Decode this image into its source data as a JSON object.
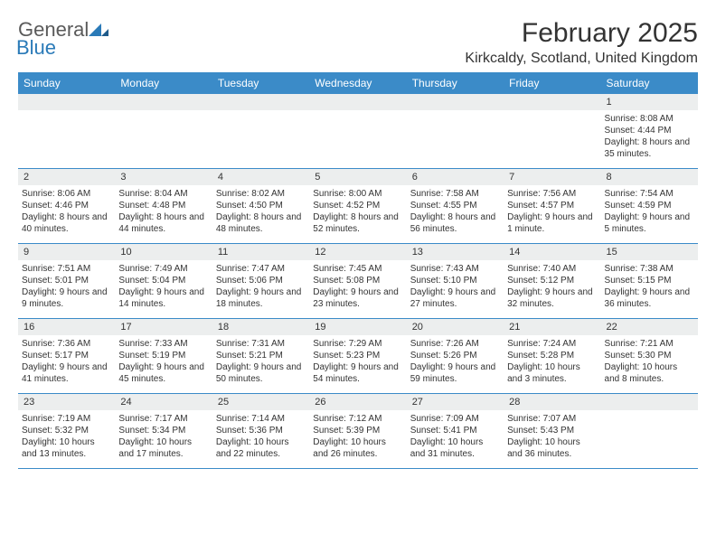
{
  "logo": {
    "text1": "General",
    "text2": "Blue"
  },
  "title": "February 2025",
  "location": "Kirkcaldy, Scotland, United Kingdom",
  "colors": {
    "header_bg": "#3b8bc8",
    "header_text": "#ffffff",
    "daynum_bg": "#eceeee",
    "border": "#3b8bc8",
    "logo_gray": "#5a5a5a",
    "logo_blue": "#2a7ab8"
  },
  "weekdays": [
    "Sunday",
    "Monday",
    "Tuesday",
    "Wednesday",
    "Thursday",
    "Friday",
    "Saturday"
  ],
  "weeks": [
    [
      {
        "day": "",
        "sunrise": "",
        "sunset": "",
        "daylight": ""
      },
      {
        "day": "",
        "sunrise": "",
        "sunset": "",
        "daylight": ""
      },
      {
        "day": "",
        "sunrise": "",
        "sunset": "",
        "daylight": ""
      },
      {
        "day": "",
        "sunrise": "",
        "sunset": "",
        "daylight": ""
      },
      {
        "day": "",
        "sunrise": "",
        "sunset": "",
        "daylight": ""
      },
      {
        "day": "",
        "sunrise": "",
        "sunset": "",
        "daylight": ""
      },
      {
        "day": "1",
        "sunrise": "Sunrise: 8:08 AM",
        "sunset": "Sunset: 4:44 PM",
        "daylight": "Daylight: 8 hours and 35 minutes."
      }
    ],
    [
      {
        "day": "2",
        "sunrise": "Sunrise: 8:06 AM",
        "sunset": "Sunset: 4:46 PM",
        "daylight": "Daylight: 8 hours and 40 minutes."
      },
      {
        "day": "3",
        "sunrise": "Sunrise: 8:04 AM",
        "sunset": "Sunset: 4:48 PM",
        "daylight": "Daylight: 8 hours and 44 minutes."
      },
      {
        "day": "4",
        "sunrise": "Sunrise: 8:02 AM",
        "sunset": "Sunset: 4:50 PM",
        "daylight": "Daylight: 8 hours and 48 minutes."
      },
      {
        "day": "5",
        "sunrise": "Sunrise: 8:00 AM",
        "sunset": "Sunset: 4:52 PM",
        "daylight": "Daylight: 8 hours and 52 minutes."
      },
      {
        "day": "6",
        "sunrise": "Sunrise: 7:58 AM",
        "sunset": "Sunset: 4:55 PM",
        "daylight": "Daylight: 8 hours and 56 minutes."
      },
      {
        "day": "7",
        "sunrise": "Sunrise: 7:56 AM",
        "sunset": "Sunset: 4:57 PM",
        "daylight": "Daylight: 9 hours and 1 minute."
      },
      {
        "day": "8",
        "sunrise": "Sunrise: 7:54 AM",
        "sunset": "Sunset: 4:59 PM",
        "daylight": "Daylight: 9 hours and 5 minutes."
      }
    ],
    [
      {
        "day": "9",
        "sunrise": "Sunrise: 7:51 AM",
        "sunset": "Sunset: 5:01 PM",
        "daylight": "Daylight: 9 hours and 9 minutes."
      },
      {
        "day": "10",
        "sunrise": "Sunrise: 7:49 AM",
        "sunset": "Sunset: 5:04 PM",
        "daylight": "Daylight: 9 hours and 14 minutes."
      },
      {
        "day": "11",
        "sunrise": "Sunrise: 7:47 AM",
        "sunset": "Sunset: 5:06 PM",
        "daylight": "Daylight: 9 hours and 18 minutes."
      },
      {
        "day": "12",
        "sunrise": "Sunrise: 7:45 AM",
        "sunset": "Sunset: 5:08 PM",
        "daylight": "Daylight: 9 hours and 23 minutes."
      },
      {
        "day": "13",
        "sunrise": "Sunrise: 7:43 AM",
        "sunset": "Sunset: 5:10 PM",
        "daylight": "Daylight: 9 hours and 27 minutes."
      },
      {
        "day": "14",
        "sunrise": "Sunrise: 7:40 AM",
        "sunset": "Sunset: 5:12 PM",
        "daylight": "Daylight: 9 hours and 32 minutes."
      },
      {
        "day": "15",
        "sunrise": "Sunrise: 7:38 AM",
        "sunset": "Sunset: 5:15 PM",
        "daylight": "Daylight: 9 hours and 36 minutes."
      }
    ],
    [
      {
        "day": "16",
        "sunrise": "Sunrise: 7:36 AM",
        "sunset": "Sunset: 5:17 PM",
        "daylight": "Daylight: 9 hours and 41 minutes."
      },
      {
        "day": "17",
        "sunrise": "Sunrise: 7:33 AM",
        "sunset": "Sunset: 5:19 PM",
        "daylight": "Daylight: 9 hours and 45 minutes."
      },
      {
        "day": "18",
        "sunrise": "Sunrise: 7:31 AM",
        "sunset": "Sunset: 5:21 PM",
        "daylight": "Daylight: 9 hours and 50 minutes."
      },
      {
        "day": "19",
        "sunrise": "Sunrise: 7:29 AM",
        "sunset": "Sunset: 5:23 PM",
        "daylight": "Daylight: 9 hours and 54 minutes."
      },
      {
        "day": "20",
        "sunrise": "Sunrise: 7:26 AM",
        "sunset": "Sunset: 5:26 PM",
        "daylight": "Daylight: 9 hours and 59 minutes."
      },
      {
        "day": "21",
        "sunrise": "Sunrise: 7:24 AM",
        "sunset": "Sunset: 5:28 PM",
        "daylight": "Daylight: 10 hours and 3 minutes."
      },
      {
        "day": "22",
        "sunrise": "Sunrise: 7:21 AM",
        "sunset": "Sunset: 5:30 PM",
        "daylight": "Daylight: 10 hours and 8 minutes."
      }
    ],
    [
      {
        "day": "23",
        "sunrise": "Sunrise: 7:19 AM",
        "sunset": "Sunset: 5:32 PM",
        "daylight": "Daylight: 10 hours and 13 minutes."
      },
      {
        "day": "24",
        "sunrise": "Sunrise: 7:17 AM",
        "sunset": "Sunset: 5:34 PM",
        "daylight": "Daylight: 10 hours and 17 minutes."
      },
      {
        "day": "25",
        "sunrise": "Sunrise: 7:14 AM",
        "sunset": "Sunset: 5:36 PM",
        "daylight": "Daylight: 10 hours and 22 minutes."
      },
      {
        "day": "26",
        "sunrise": "Sunrise: 7:12 AM",
        "sunset": "Sunset: 5:39 PM",
        "daylight": "Daylight: 10 hours and 26 minutes."
      },
      {
        "day": "27",
        "sunrise": "Sunrise: 7:09 AM",
        "sunset": "Sunset: 5:41 PM",
        "daylight": "Daylight: 10 hours and 31 minutes."
      },
      {
        "day": "28",
        "sunrise": "Sunrise: 7:07 AM",
        "sunset": "Sunset: 5:43 PM",
        "daylight": "Daylight: 10 hours and 36 minutes."
      },
      {
        "day": "",
        "sunrise": "",
        "sunset": "",
        "daylight": ""
      }
    ]
  ]
}
